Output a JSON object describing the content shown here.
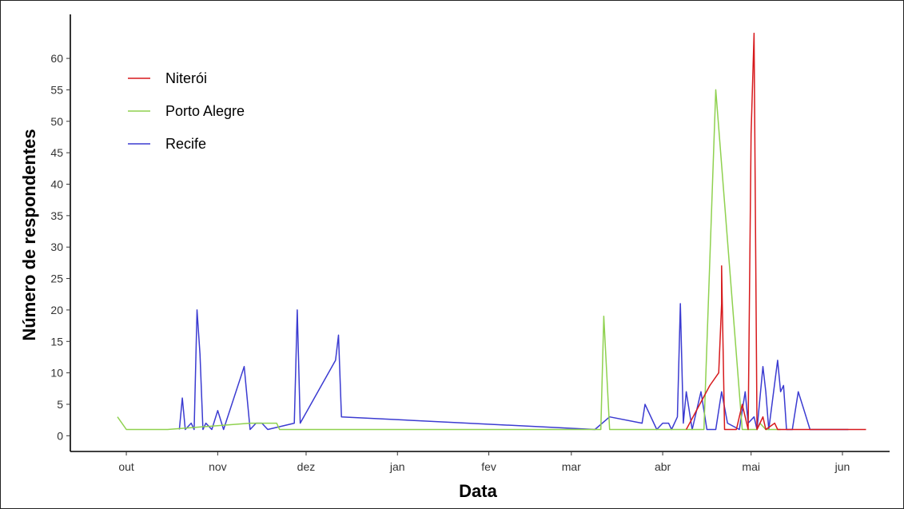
{
  "chart_data": {
    "type": "line",
    "title": "",
    "xlabel": "Data",
    "ylabel": "Número de respondentes",
    "x_ticks": [
      {
        "label": "out",
        "date": "2020-10-01"
      },
      {
        "label": "nov",
        "date": "2020-11-01"
      },
      {
        "label": "dez",
        "date": "2020-12-01"
      },
      {
        "label": "jan",
        "date": "2021-01-01"
      },
      {
        "label": "fev",
        "date": "2021-02-01"
      },
      {
        "label": "mar",
        "date": "2021-03-01"
      },
      {
        "label": "abr",
        "date": "2021-04-01"
      },
      {
        "label": "mai",
        "date": "2021-05-01"
      },
      {
        "label": "jun",
        "date": "2021-06-01"
      }
    ],
    "xlim": [
      "2020-09-12",
      "2021-06-17"
    ],
    "y_ticks": [
      0,
      5,
      10,
      15,
      20,
      25,
      30,
      35,
      40,
      45,
      50,
      55,
      60
    ],
    "ylim": [
      -2.5,
      67
    ],
    "grid": false,
    "legend_position": "top-left",
    "series": [
      {
        "name": "Niterói",
        "color": "#d7191c",
        "points": [
          [
            "2021-04-09",
            1
          ],
          [
            "2021-04-17",
            8
          ],
          [
            "2021-04-20",
            10
          ],
          [
            "2021-04-21",
            21
          ],
          [
            "2021-04-21",
            27
          ],
          [
            "2021-04-22",
            1
          ],
          [
            "2021-04-26",
            1
          ],
          [
            "2021-04-28",
            5
          ],
          [
            "2021-04-30",
            1
          ],
          [
            "2021-05-01",
            48
          ],
          [
            "2021-05-02",
            64
          ],
          [
            "2021-05-03",
            1
          ],
          [
            "2021-05-05",
            3
          ],
          [
            "2021-05-06",
            1
          ],
          [
            "2021-05-09",
            2
          ],
          [
            "2021-05-10",
            1
          ],
          [
            "2021-06-03",
            1
          ],
          [
            "2021-06-09",
            1
          ]
        ]
      },
      {
        "name": "Porto Alegre",
        "color": "#8fd14f",
        "points": [
          [
            "2020-09-28",
            3
          ],
          [
            "2020-10-01",
            1
          ],
          [
            "2020-10-15",
            1
          ],
          [
            "2020-11-12",
            2
          ],
          [
            "2020-11-21",
            2
          ],
          [
            "2020-11-22",
            1
          ],
          [
            "2021-03-11",
            1
          ],
          [
            "2021-03-12",
            19
          ],
          [
            "2021-03-14",
            1
          ],
          [
            "2021-04-15",
            1
          ],
          [
            "2021-04-19",
            55
          ],
          [
            "2021-04-28",
            1
          ],
          [
            "2021-05-03",
            1
          ],
          [
            "2021-05-04",
            2
          ],
          [
            "2021-05-06",
            1
          ],
          [
            "2021-05-11",
            1
          ]
        ]
      },
      {
        "name": "Recife",
        "color": "#3b3bd1",
        "points": [
          [
            "2020-10-19",
            1
          ],
          [
            "2020-10-20",
            6
          ],
          [
            "2020-10-21",
            1
          ],
          [
            "2020-10-23",
            2
          ],
          [
            "2020-10-24",
            1
          ],
          [
            "2020-10-25",
            20
          ],
          [
            "2020-10-26",
            13
          ],
          [
            "2020-10-27",
            1
          ],
          [
            "2020-10-28",
            2
          ],
          [
            "2020-10-30",
            1
          ],
          [
            "2020-11-01",
            4
          ],
          [
            "2020-11-03",
            1
          ],
          [
            "2020-11-10",
            11
          ],
          [
            "2020-11-12",
            1
          ],
          [
            "2020-11-14",
            2
          ],
          [
            "2020-11-16",
            2
          ],
          [
            "2020-11-18",
            1
          ],
          [
            "2020-11-27",
            2
          ],
          [
            "2020-11-28",
            20
          ],
          [
            "2020-11-29",
            2
          ],
          [
            "2020-12-11",
            12
          ],
          [
            "2020-12-12",
            16
          ],
          [
            "2020-12-13",
            3
          ],
          [
            "2021-03-09",
            1
          ],
          [
            "2021-03-14",
            3
          ],
          [
            "2021-03-25",
            2
          ],
          [
            "2021-03-26",
            5
          ],
          [
            "2021-03-30",
            1
          ],
          [
            "2021-04-01",
            2
          ],
          [
            "2021-04-03",
            2
          ],
          [
            "2021-04-04",
            1
          ],
          [
            "2021-04-06",
            3
          ],
          [
            "2021-04-07",
            21
          ],
          [
            "2021-04-08",
            2
          ],
          [
            "2021-04-09",
            7
          ],
          [
            "2021-04-11",
            1
          ],
          [
            "2021-04-14",
            7
          ],
          [
            "2021-04-16",
            1
          ],
          [
            "2021-04-19",
            1
          ],
          [
            "2021-04-21",
            7
          ],
          [
            "2021-04-23",
            2
          ],
          [
            "2021-04-27",
            1
          ],
          [
            "2021-04-29",
            7
          ],
          [
            "2021-04-30",
            2
          ],
          [
            "2021-05-02",
            3
          ],
          [
            "2021-05-03",
            1
          ],
          [
            "2021-05-05",
            11
          ],
          [
            "2021-05-06",
            7
          ],
          [
            "2021-05-07",
            1
          ],
          [
            "2021-05-10",
            12
          ],
          [
            "2021-05-11",
            7
          ],
          [
            "2021-05-12",
            8
          ],
          [
            "2021-05-13",
            1
          ],
          [
            "2021-05-15",
            1
          ],
          [
            "2021-05-17",
            7
          ],
          [
            "2021-05-19",
            4
          ],
          [
            "2021-05-21",
            1
          ],
          [
            "2021-06-03",
            1
          ]
        ]
      }
    ]
  }
}
